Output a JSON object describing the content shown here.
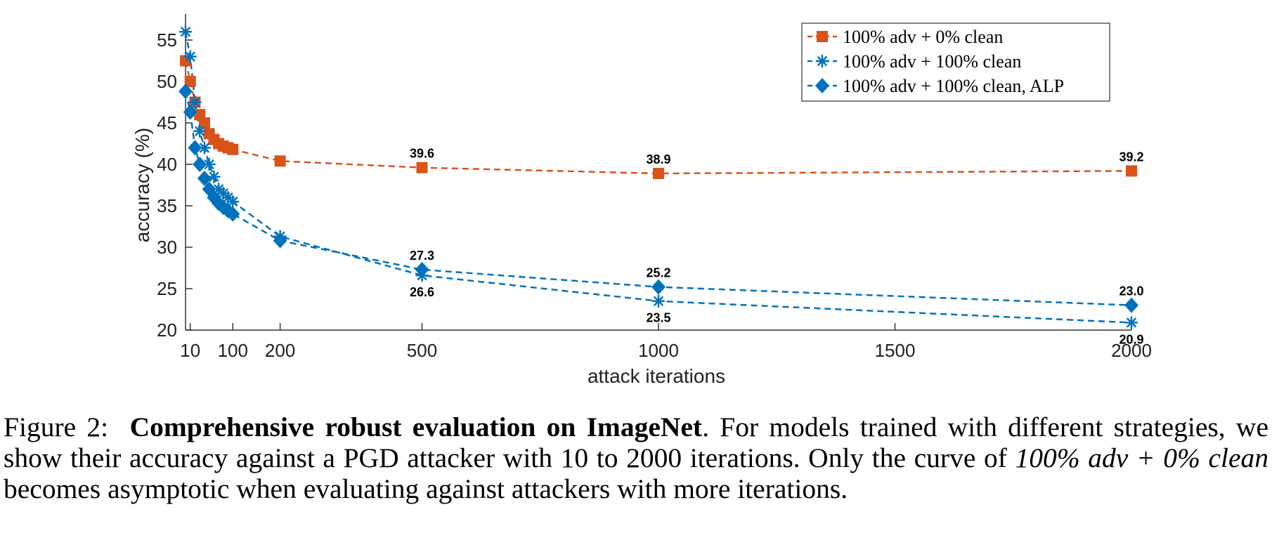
{
  "chart_data": {
    "type": "line",
    "xlabel": "attack iterations",
    "ylabel": "accuracy (%)",
    "xlim": [
      0,
      2000
    ],
    "ylim": [
      20,
      57
    ],
    "xticks": [
      10,
      100,
      200,
      500,
      1000,
      1500,
      2000
    ],
    "xtick_labels": [
      "10",
      "100",
      "200",
      "500",
      "1000",
      "1500",
      "2000"
    ],
    "yticks": [
      20,
      25,
      30,
      35,
      40,
      45,
      50,
      55
    ],
    "ytick_labels": [
      "20",
      "25",
      "30",
      "35",
      "40",
      "45",
      "50",
      "55"
    ],
    "grid": false,
    "legend_position": "top-right",
    "series": [
      {
        "name": "100% adv + 0% clean",
        "color": "#D95319",
        "marker": "square",
        "x": [
          0,
          10,
          20,
          30,
          40,
          50,
          60,
          70,
          80,
          90,
          100,
          200,
          500,
          1000,
          2000
        ],
        "y": [
          52.5,
          50.0,
          47.5,
          46.0,
          45.0,
          43.7,
          43.0,
          42.5,
          42.2,
          42.0,
          41.8,
          40.4,
          39.6,
          38.9,
          39.2
        ],
        "labels": [
          {
            "x": 500,
            "text": "39.6",
            "pos": "above"
          },
          {
            "x": 1000,
            "text": "38.9",
            "pos": "above"
          },
          {
            "x": 2000,
            "text": "39.2",
            "pos": "above"
          }
        ]
      },
      {
        "name": "100% adv + 100% clean",
        "color": "#0072BD",
        "marker": "asterisk",
        "x": [
          0,
          10,
          20,
          30,
          40,
          50,
          60,
          70,
          80,
          90,
          100,
          200,
          500,
          1000,
          2000
        ],
        "y": [
          56.0,
          53.0,
          47.5,
          44.0,
          42.0,
          40.0,
          38.5,
          37.0,
          36.5,
          36.0,
          35.5,
          31.3,
          26.6,
          23.5,
          20.9
        ],
        "labels": [
          {
            "x": 500,
            "text": "26.6",
            "pos": "below"
          },
          {
            "x": 1000,
            "text": "23.5",
            "pos": "below"
          },
          {
            "x": 2000,
            "text": "20.9",
            "pos": "below"
          }
        ]
      },
      {
        "name": "100% adv + 100% clean, ALP",
        "color": "#0072BD",
        "marker": "diamond",
        "x": [
          0,
          10,
          20,
          30,
          40,
          50,
          60,
          70,
          80,
          90,
          100,
          200,
          500,
          1000,
          2000
        ],
        "y": [
          48.8,
          46.3,
          42.0,
          40.0,
          38.3,
          37.0,
          36.0,
          35.3,
          34.8,
          34.4,
          34.0,
          30.8,
          27.3,
          25.2,
          23.0
        ],
        "labels": [
          {
            "x": 500,
            "text": "27.3",
            "pos": "above"
          },
          {
            "x": 1000,
            "text": "25.2",
            "pos": "above"
          },
          {
            "x": 2000,
            "text": "23.0",
            "pos": "above"
          }
        ]
      }
    ]
  },
  "caption": {
    "prefix": "Figure 2:",
    "bold": "Comprehensive robust evaluation on ImageNet",
    "text1": ". For models trained with different strategies, we show their accuracy against a PGD attacker with 10 to 2000 iterations. Only the curve of ",
    "italic": "100% adv + 0% clean",
    "text2": " becomes asymptotic when evaluating against attackers with more iterations."
  }
}
